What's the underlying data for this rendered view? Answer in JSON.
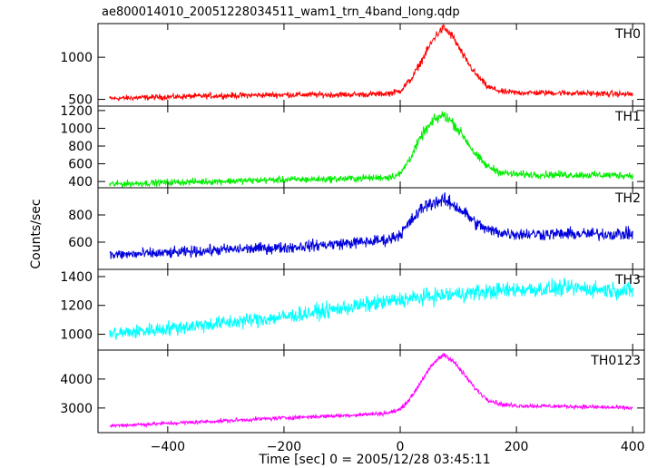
{
  "title": "ae800014010_20051228034511_wam1_trn_4band_long.qdp",
  "ylabel": "Counts/sec",
  "xlabel": "Time [sec] 0 = 2005/12/28 03:45:11",
  "xlim": [
    -520,
    420
  ],
  "xticks": [
    -400,
    -200,
    0,
    200,
    400
  ],
  "chart_data": {
    "type": "line",
    "title": "ae800014010_20051228034511_wam1_trn_4band_long.qdp",
    "xlabel": "Time [sec] 0 = 2005/12/28 03:45:11",
    "ylabel": "Counts/sec",
    "xlim": [
      -520,
      420
    ],
    "x_tick_labels": [
      "−400",
      "−200",
      "0",
      "200",
      "400"
    ],
    "panels": [
      {
        "name": "TH0",
        "color": "#ff0000",
        "ylim": [
          420,
          1400
        ],
        "yticks": [
          500,
          1000
        ],
        "ytick_labels": [
          "500",
          "1000"
        ],
        "x": [
          -500,
          -400,
          -300,
          -200,
          -100,
          -50,
          -20,
          0,
          20,
          40,
          60,
          75,
          90,
          110,
          130,
          150,
          175,
          200,
          300,
          400
        ],
        "y": [
          510,
          530,
          545,
          555,
          555,
          560,
          570,
          600,
          750,
          1000,
          1250,
          1350,
          1250,
          1000,
          800,
          650,
          590,
          580,
          575,
          560
        ],
        "noise": 25
      },
      {
        "name": "TH1",
        "color": "#00ee00",
        "ylim": [
          330,
          1250
        ],
        "yticks": [
          400,
          600,
          800,
          1000,
          1200
        ],
        "ytick_labels": [
          "400",
          "600",
          "800",
          "1000",
          "1200"
        ],
        "x": [
          -500,
          -400,
          -300,
          -200,
          -100,
          -50,
          -20,
          0,
          20,
          40,
          60,
          75,
          90,
          110,
          130,
          150,
          175,
          200,
          300,
          400
        ],
        "y": [
          370,
          390,
          405,
          420,
          430,
          440,
          450,
          480,
          700,
          950,
          1100,
          1150,
          1070,
          900,
          700,
          570,
          500,
          480,
          475,
          470
        ],
        "noise": 28
      },
      {
        "name": "TH2",
        "color": "#0000dd",
        "ylim": [
          400,
          1000
        ],
        "yticks": [
          600,
          800
        ],
        "ytick_labels": [
          "600",
          "800"
        ],
        "x": [
          -500,
          -400,
          -300,
          -200,
          -100,
          -50,
          -20,
          0,
          20,
          40,
          60,
          75,
          90,
          110,
          130,
          150,
          175,
          200,
          300,
          400
        ],
        "y": [
          505,
          520,
          545,
          560,
          590,
          605,
          620,
          660,
          760,
          860,
          900,
          905,
          880,
          820,
          740,
          690,
          670,
          660,
          660,
          660
        ],
        "noise": 30
      },
      {
        "name": "TH3",
        "color": "#00ffff",
        "ylim": [
          890,
          1450
        ],
        "yticks": [
          1000,
          1200,
          1400
        ],
        "ytick_labels": [
          "1000",
          "1200",
          "1400"
        ],
        "x": [
          -500,
          -400,
          -300,
          -200,
          -100,
          0,
          100,
          200,
          300,
          400
        ],
        "y": [
          1000,
          1040,
          1080,
          1120,
          1180,
          1240,
          1280,
          1310,
          1320,
          1300
        ],
        "noise": 38
      },
      {
        "name": "TH0123",
        "color": "#ff00ff",
        "ylim": [
          2150,
          5000
        ],
        "yticks": [
          3000,
          4000
        ],
        "ytick_labels": [
          "3000",
          "4000"
        ],
        "x": [
          -500,
          -400,
          -300,
          -200,
          -100,
          -50,
          -20,
          0,
          20,
          40,
          60,
          75,
          90,
          110,
          130,
          150,
          175,
          200,
          300,
          400
        ],
        "y": [
          2390,
          2470,
          2560,
          2660,
          2740,
          2790,
          2830,
          2950,
          3400,
          4050,
          4600,
          4850,
          4650,
          4150,
          3650,
          3300,
          3120,
          3080,
          3050,
          3000
        ],
        "noise": 50
      }
    ]
  }
}
